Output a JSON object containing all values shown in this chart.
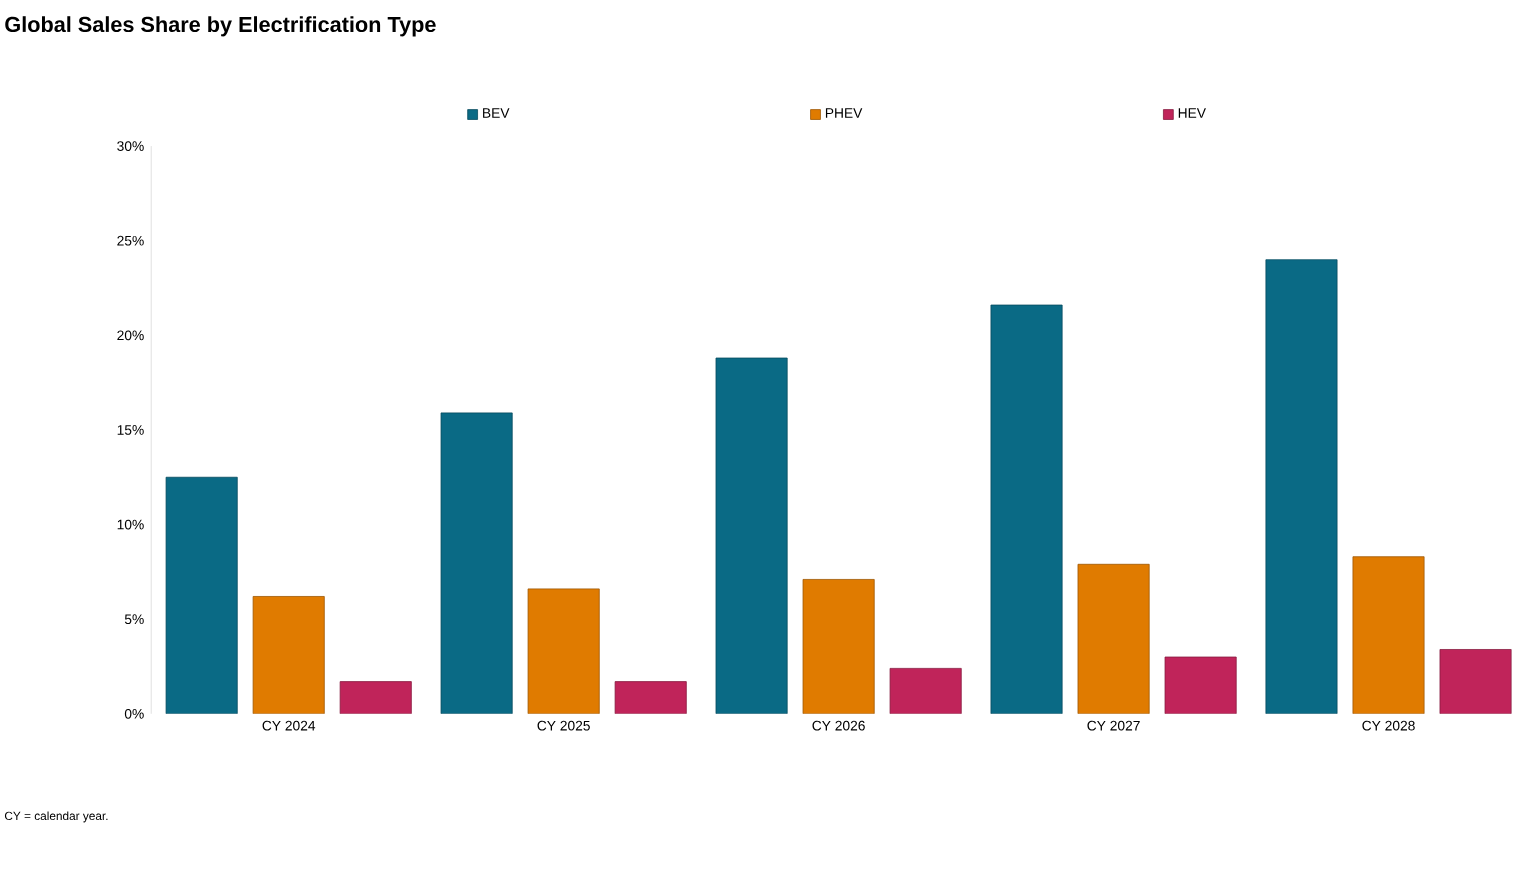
{
  "chart_data": {
    "type": "bar",
    "title": "Global Sales Share by Electrification Type",
    "categories": [
      "CY 2024",
      "CY 2025",
      "CY 2026",
      "CY 2027",
      "CY 2028"
    ],
    "series": [
      {
        "name": "BEV",
        "color": "#0a6a85",
        "values": [
          12.5,
          15.9,
          18.8,
          21.6,
          24.0
        ]
      },
      {
        "name": "PHEV",
        "color": "#e07b00",
        "values": [
          6.2,
          6.6,
          7.1,
          7.9,
          8.3
        ]
      },
      {
        "name": "HEV",
        "color": "#c0245a",
        "values": [
          1.7,
          1.7,
          2.4,
          3.0,
          3.4
        ]
      }
    ],
    "ylim": [
      0,
      30
    ],
    "yticks": [
      {
        "value": 0,
        "label": "0%"
      },
      {
        "value": 5,
        "label": "5%"
      },
      {
        "value": 10,
        "label": "10%"
      },
      {
        "value": 15,
        "label": "15%"
      },
      {
        "value": 20,
        "label": "20%"
      },
      {
        "value": 25,
        "label": "25%"
      },
      {
        "value": 30,
        "label": "30%"
      }
    ],
    "grid": false,
    "legend": "top",
    "annotations": [
      "CY = calendar year."
    ]
  }
}
